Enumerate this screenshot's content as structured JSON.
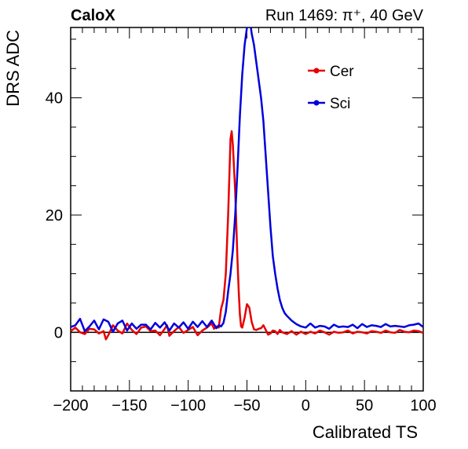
{
  "header": {
    "left_label": "CaloX",
    "right_label": "Run 1469:   π⁺, 40 GeV"
  },
  "colors": {
    "cer": "#e60000",
    "sci": "#0000dd",
    "axis": "#000000",
    "zero_line": "#000000"
  },
  "chart_data": {
    "type": "line",
    "title": "",
    "xlabel": "Calibrated TS",
    "ylabel": "DRS ADC",
    "xlim": [
      -200,
      100
    ],
    "ylim": [
      -10,
      52
    ],
    "x_ticks": [
      -200,
      -150,
      -100,
      -50,
      0,
      50,
      100
    ],
    "x_tick_labels": [
      "−200",
      "−150",
      "−100",
      "−50",
      "0",
      "50",
      "100"
    ],
    "y_ticks": [
      0,
      20,
      40
    ],
    "y_tick_labels": [
      "0",
      "20",
      "40"
    ],
    "grid": false,
    "zero_line": true,
    "legend_position": "top-right",
    "series": [
      {
        "name": "Cer",
        "color": "#e60000",
        "x": [
          -200,
          -196,
          -192,
          -188,
          -184,
          -180,
          -176,
          -172,
          -170,
          -168,
          -164,
          -160,
          -156,
          -152,
          -148,
          -144,
          -140,
          -136,
          -132,
          -128,
          -124,
          -120,
          -118,
          -116,
          -112,
          -108,
          -104,
          -100,
          -96,
          -92,
          -88,
          -84,
          -80,
          -78,
          -76,
          -74,
          -72,
          -70,
          -68,
          -66,
          -64,
          -63,
          -62,
          -61,
          -60,
          -59,
          -58,
          -57,
          -56,
          -55,
          -54,
          -52,
          -50,
          -48,
          -46,
          -44,
          -42,
          -40,
          -38,
          -36,
          -34,
          -32,
          -30,
          -28,
          -26,
          -24,
          -22,
          -20,
          -16,
          -12,
          -8,
          -4,
          0,
          4,
          8,
          12,
          16,
          20,
          24,
          28,
          32,
          36,
          40,
          44,
          48,
          52,
          56,
          60,
          64,
          68,
          72,
          76,
          80,
          84,
          88,
          92,
          96,
          100
        ],
        "values": [
          0.2,
          0.8,
          0.0,
          -0.3,
          0.6,
          0.5,
          -0.2,
          0.2,
          -1.2,
          -0.5,
          1.2,
          0.3,
          -0.2,
          1.5,
          0.4,
          -0.3,
          0.8,
          1.0,
          0.2,
          0.3,
          -0.5,
          0.6,
          1.2,
          -0.6,
          0.2,
          0.9,
          -0.1,
          0.4,
          0.9,
          -0.5,
          0.3,
          0.8,
          1.5,
          0.6,
          1.0,
          0.8,
          4.0,
          5.5,
          10.0,
          20.0,
          33.0,
          34.3,
          32.0,
          28.0,
          24.0,
          18.0,
          12.0,
          7.0,
          3.0,
          1.0,
          0.8,
          2.5,
          4.8,
          4.2,
          1.8,
          0.5,
          0.4,
          0.6,
          0.7,
          1.2,
          0.4,
          -0.4,
          -0.2,
          0.3,
          0.2,
          -0.3,
          0.4,
          0.0,
          -0.3,
          0.2,
          -0.4,
          0.1,
          -0.3,
          0.1,
          -0.2,
          0.3,
          0.0,
          -0.4,
          0.1,
          -0.1,
          0.0,
          0.3,
          -0.2,
          0.1,
          0.0,
          -0.2,
          0.2,
          0.1,
          -0.1,
          0.3,
          0.0,
          -0.1,
          0.4,
          0.1,
          0.0,
          0.3,
          0.2,
          -0.1
        ]
      },
      {
        "name": "Sci",
        "color": "#0000dd",
        "x": [
          -200,
          -196,
          -192,
          -188,
          -184,
          -180,
          -176,
          -172,
          -168,
          -164,
          -160,
          -156,
          -152,
          -148,
          -144,
          -140,
          -136,
          -132,
          -128,
          -124,
          -120,
          -116,
          -112,
          -108,
          -104,
          -100,
          -96,
          -92,
          -88,
          -84,
          -80,
          -76,
          -74,
          -72,
          -70,
          -68,
          -66,
          -64,
          -62,
          -60,
          -58,
          -56,
          -54,
          -52,
          -50,
          -48,
          -46,
          -44,
          -42,
          -40,
          -38,
          -36,
          -34,
          -32,
          -30,
          -28,
          -26,
          -24,
          -22,
          -20,
          -18,
          -16,
          -14,
          -12,
          -10,
          -8,
          -4,
          0,
          4,
          8,
          12,
          16,
          20,
          24,
          28,
          32,
          36,
          40,
          44,
          48,
          52,
          56,
          60,
          64,
          68,
          72,
          76,
          80,
          84,
          88,
          92,
          96,
          100
        ],
        "values": [
          0.9,
          1.2,
          2.3,
          0.2,
          1.0,
          2.0,
          0.5,
          2.2,
          1.8,
          0.1,
          1.5,
          2.0,
          0.3,
          1.5,
          0.6,
          1.3,
          1.3,
          0.5,
          1.6,
          0.8,
          1.7,
          0.3,
          1.5,
          0.8,
          1.7,
          0.6,
          1.8,
          0.9,
          1.9,
          0.9,
          2.0,
          0.7,
          1.2,
          1.0,
          1.6,
          3.5,
          7.0,
          10.0,
          14.0,
          20.0,
          28.0,
          37.0,
          44.0,
          49.0,
          52.0,
          54.0,
          51.0,
          49.0,
          46.0,
          43.0,
          40.0,
          36.0,
          30.0,
          24.0,
          18.0,
          13.0,
          10.0,
          7.5,
          5.5,
          4.2,
          3.3,
          2.8,
          2.4,
          2.0,
          1.7,
          1.4,
          1.0,
          0.8,
          1.5,
          0.8,
          1.1,
          1.0,
          0.6,
          1.3,
          0.9,
          1.0,
          0.9,
          1.3,
          0.7,
          1.4,
          0.9,
          1.2,
          1.1,
          0.9,
          1.4,
          1.0,
          1.1,
          1.0,
          0.9,
          1.2,
          1.3,
          1.5,
          0.9
        ]
      }
    ]
  }
}
